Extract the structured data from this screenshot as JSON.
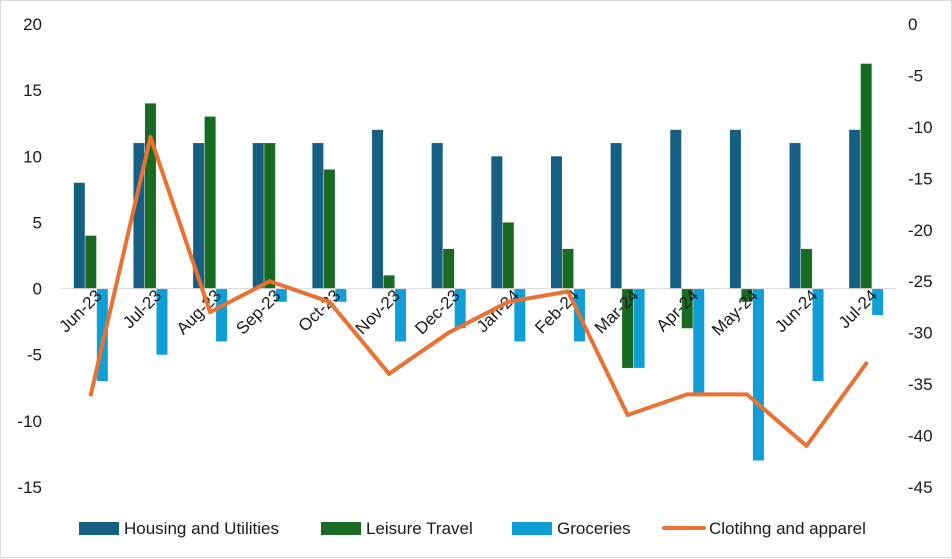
{
  "chart_data": {
    "type": "bar",
    "categories": [
      "Jun-23",
      "Jul-23",
      "Aug-23",
      "Sep-23",
      "Oct-23",
      "Nov-23",
      "Dec-23",
      "Jan-24",
      "Feb-24",
      "Mar-24",
      "Apr-24",
      "May-24",
      "Jun-24",
      "Jul-24"
    ],
    "series": [
      {
        "name": "Housing and Utilities",
        "type": "bar",
        "axis": "left",
        "color": "#156082",
        "values": [
          8,
          11,
          11,
          11,
          11,
          12,
          11,
          10,
          10,
          11,
          12,
          12,
          11,
          12
        ]
      },
      {
        "name": "Leisure Travel",
        "type": "bar",
        "axis": "left",
        "color": "#196b24",
        "values": [
          4,
          14,
          13,
          11,
          9,
          1,
          3,
          5,
          3,
          -6,
          -3,
          -1,
          3,
          17
        ]
      },
      {
        "name": "Groceries",
        "type": "bar",
        "axis": "left",
        "color": "#0f9ed5",
        "values": [
          -7,
          -5,
          -4,
          -1,
          -1,
          -4,
          -3,
          -4,
          -4,
          -6,
          -8,
          -13,
          -7,
          -2
        ]
      },
      {
        "name": "Clotihng and apparel",
        "type": "line",
        "axis": "right",
        "color": "#e97132",
        "values": [
          -36,
          -11,
          -28,
          -25,
          -27,
          -34,
          -30,
          -27,
          -26,
          -38,
          -36,
          -36,
          -41,
          -33
        ]
      }
    ],
    "y_left": {
      "min": -15,
      "max": 20,
      "step": 5,
      "ticks": [
        "20",
        "15",
        "10",
        "5",
        "0",
        "-5",
        "-10",
        "-15"
      ]
    },
    "y_right": {
      "min": -45,
      "max": 0,
      "step": 5,
      "ticks": [
        "0",
        "-5",
        "-10",
        "-15",
        "-20",
        "-25",
        "-30",
        "-35",
        "-40",
        "-45"
      ]
    },
    "legend": "bottom",
    "grid": false
  }
}
